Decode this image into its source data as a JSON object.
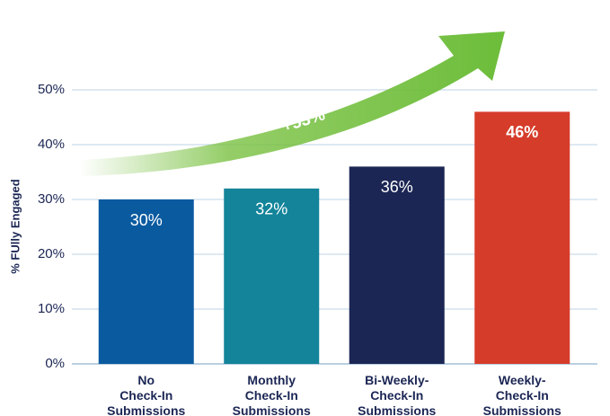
{
  "chart_data": {
    "type": "bar",
    "y_label": "% FUlly Engaged",
    "annotation": "+53%",
    "categories": [
      "No\nCheck-In\nSubmissions",
      "Monthly\nCheck-In\nSubmissions",
      "Bi-Weekly-\nCheck-In\nSubmissions",
      "Weekly-\nCheck-In\nSubmissions"
    ],
    "values": [
      30,
      32,
      36,
      46
    ],
    "value_labels": [
      "30%",
      "32%",
      "36%",
      "46%"
    ],
    "colors": [
      "#0a5aa0",
      "#13849a",
      "#1b2654",
      "#d63c2a"
    ],
    "ylim": [
      0,
      50
    ],
    "yticks": [
      {
        "value": 0,
        "label": "0%"
      },
      {
        "value": 10,
        "label": "10%"
      },
      {
        "value": 20,
        "label": "20%"
      },
      {
        "value": 30,
        "label": "30%"
      },
      {
        "value": 40,
        "label": "40%"
      },
      {
        "value": 50,
        "label": "50%"
      }
    ],
    "grid": true
  }
}
